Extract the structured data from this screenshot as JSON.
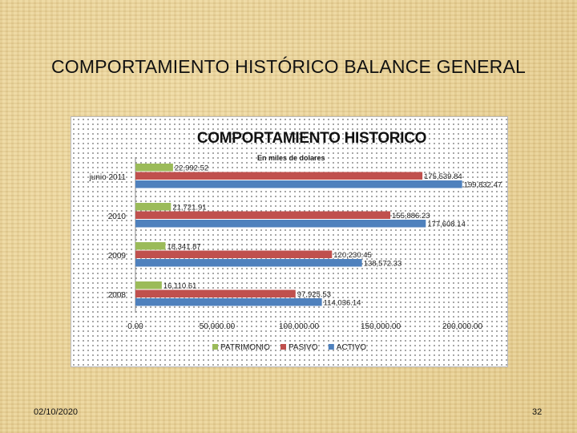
{
  "slide": {
    "title": "COMPORTAMIENTO HISTÓRICO BALANCE GENERAL",
    "date": "02/10/2020",
    "page_number": "32"
  },
  "chart_data": {
    "type": "bar",
    "orientation": "horizontal",
    "title": "COMPORTAMIENTO HISTORICO",
    "subtitle": "En miles de dolares",
    "categories": [
      "junio 2011",
      "2010",
      "2009",
      "2008"
    ],
    "series": [
      {
        "name": "PATRIMONIO",
        "color": "#9bbb59",
        "values": [
          22992.52,
          21721.91,
          18341.87,
          16110.61
        ],
        "labels": [
          "22,992.52",
          "21,721.91",
          "18,341.87",
          "16,110.61"
        ]
      },
      {
        "name": "PASIVO",
        "color": "#c0504d",
        "values": [
          175539.84,
          155886.23,
          120230.45,
          97925.53
        ],
        "labels": [
          "175,539.84",
          "155,886.23",
          "120,230.45",
          "97,925.53"
        ]
      },
      {
        "name": "ACTIVO",
        "color": "#4f81bd",
        "values": [
          199832.47,
          177608.14,
          138572.33,
          114036.14
        ],
        "labels": [
          "199,832.47",
          "177,608.14",
          "138,572.33",
          "114,036.14"
        ]
      }
    ],
    "xlim": [
      0,
      200000
    ],
    "xticks": [
      0,
      50000,
      100000,
      150000,
      200000
    ],
    "xtick_labels": [
      "0.00",
      "50,000.00",
      "100,000.00",
      "150,000.00",
      "200,000.00"
    ],
    "legend_position": "bottom",
    "grid": false
  }
}
